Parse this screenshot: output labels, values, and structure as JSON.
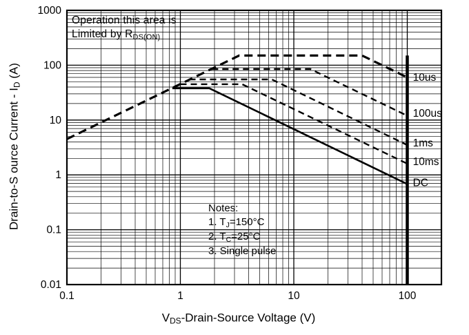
{
  "chart_data": {
    "type": "line",
    "title": "",
    "line_color": "#000000",
    "grid": true,
    "x_axis": {
      "scale": "log",
      "min": 0.1,
      "max": 200,
      "tick_values": [
        0.1,
        1,
        10,
        100
      ],
      "tick_labels": [
        "0.1",
        "1",
        "10",
        "100"
      ],
      "label_pre": "V",
      "label_sub": "DS",
      "label_post": "-Drain-Source Voltage (V)"
    },
    "y_axis": {
      "scale": "log",
      "min": 0.01,
      "max": 1000,
      "tick_values": [
        0.01,
        0.1,
        1,
        10,
        100,
        1000
      ],
      "tick_labels": [
        "0.01",
        "0.1",
        "1",
        "10",
        "100",
        "1000"
      ],
      "label_pre": "Drain-to-S ource Current - I",
      "label_sub": "D",
      "label_post": " (A)"
    },
    "annotation": {
      "line1": "Operation this area is",
      "line2_pre": "Limited  by R",
      "line2_sub": "DS(ON)"
    },
    "notes": {
      "title": "Notes:",
      "item1_pre": "1. T",
      "item1_sub": "J",
      "item1_post": "=150°C",
      "item2_pre": "2. T",
      "item2_sub": "C",
      "item2_post": "=25°C",
      "item3": "3. Single pulse"
    },
    "series": [
      {
        "name": "pulse-10us",
        "label": "10us",
        "style": "dashed",
        "width": 3.2,
        "points": [
          [
            0.1,
            4.5
          ],
          [
            3.3,
            150
          ],
          [
            40,
            150
          ],
          [
            100,
            60
          ]
        ],
        "label_pos": [
          112,
          52
        ]
      },
      {
        "name": "pulse-100us",
        "label": "100us",
        "style": "dashed",
        "width": 2.4,
        "points": [
          [
            1.9,
            85
          ],
          [
            14,
            85
          ],
          [
            100,
            12
          ]
        ],
        "label_pos": [
          112,
          11.5
        ]
      },
      {
        "name": "pulse-1ms",
        "label": "1ms",
        "style": "dashed",
        "width": 2.4,
        "points": [
          [
            1.2,
            55
          ],
          [
            6.4,
            55
          ],
          [
            100,
            3.5
          ]
        ],
        "label_pos": [
          112,
          3.3
        ]
      },
      {
        "name": "pulse-10ms",
        "label": "10ms",
        "style": "dashed",
        "width": 2.4,
        "points": [
          [
            1.0,
            45
          ],
          [
            3.5,
            45
          ],
          [
            100,
            1.6
          ]
        ],
        "label_pos": [
          112,
          1.5
        ]
      },
      {
        "name": "dc",
        "label": "DC",
        "style": "solid",
        "width": 2.6,
        "points": [
          [
            0.85,
            38
          ],
          [
            1.8,
            38
          ],
          [
            100,
            0.68
          ]
        ],
        "label_pos": [
          112,
          0.62
        ]
      },
      {
        "name": "breakdown-limit",
        "label": "",
        "style": "solid",
        "width": 4.5,
        "points": [
          [
            100,
            150
          ],
          [
            100,
            0.01
          ]
        ],
        "label_pos": [
          0,
          0
        ]
      }
    ]
  }
}
